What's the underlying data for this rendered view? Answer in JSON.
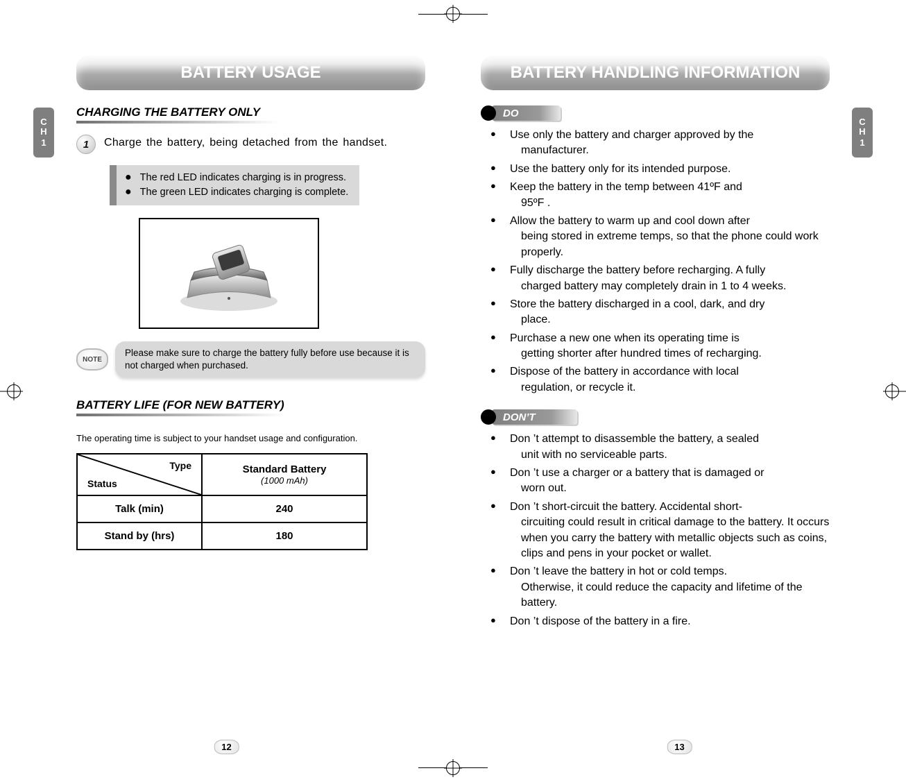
{
  "chapter_tab": {
    "line1": "C",
    "line2": "H",
    "line3": "1"
  },
  "left": {
    "header": "BATTERY USAGE",
    "section1": "CHARGING THE BATTERY ONLY",
    "step1_num": "1",
    "step1_text": "Charge the battery, being detached from the handset.",
    "info_bullets": [
      "The red LED indicates charging is in progress.",
      "The green LED indicates charging is complete."
    ],
    "note_badge": "NOTE",
    "note_text": "Please make sure to charge the battery fully before use because it is not charged when purchased.",
    "section2": "BATTERY LIFE (FOR NEW BATTERY)",
    "caption": "The operating time is subject to your handset usage and configuration.",
    "table": {
      "type_label": "Type",
      "status_label": "Status",
      "col_header": "Standard Battery",
      "col_sub": "(1000 mAh)",
      "rows": [
        {
          "label": "Talk (min)",
          "value": "240"
        },
        {
          "label": "Stand by (hrs)",
          "value": "180"
        }
      ]
    },
    "page_num": "12"
  },
  "right": {
    "header": "BATTERY HANDLING INFORMATION",
    "do_label": "DO",
    "do_items": [
      {
        "first": "Use only the battery and charger approved by the",
        "cont": "manufacturer."
      },
      {
        "first": "Use the battery only for its intended purpose."
      },
      {
        "first": "Keep the battery in the temp between 41ºF and",
        "cont": "95ºF ."
      },
      {
        "first": "Allow the battery to warm up and cool down after",
        "cont": "being stored in extreme temps, so that the phone could work properly."
      },
      {
        "first": "Fully discharge the battery before recharging. A fully",
        "cont": "charged battery may completely drain in 1 to 4 weeks."
      },
      {
        "first": "Store the battery discharged in a cool, dark, and dry",
        "cont": "place."
      },
      {
        "first": "Purchase a new one when its operating time is",
        "cont": "getting shorter after hundred times of recharging."
      },
      {
        "first": "Dispose of the battery in accordance with local",
        "cont": "regulation, or recycle it."
      }
    ],
    "dont_label": "DON’T",
    "dont_items": [
      {
        "first": "Don ’t attempt to disassemble the battery, a sealed",
        "cont": "unit with no serviceable parts."
      },
      {
        "first": "Don ’t use a charger or a battery that is damaged or",
        "cont": "worn out."
      },
      {
        "first": "Don ’t short-circuit the battery. Accidental short-",
        "cont": "circuiting could result in critical damage to the battery. It occurs when you carry the battery with metallic objects such as coins, clips and pens in your pocket or wallet."
      },
      {
        "first": "Don ’t leave the battery in hot or cold temps.",
        "cont": "Otherwise, it could reduce the capacity and lifetime of the battery."
      },
      {
        "first": "Don ’t dispose of the battery in a fire."
      }
    ],
    "page_num": "13"
  },
  "colors": {
    "header_text": "#ffffff",
    "pill_grad_top": "#f6f6f6",
    "pill_grad_bottom": "#8f8f8f",
    "side_tab_bg": "#7f7f7f",
    "info_bg": "#d9d9d9",
    "info_border": "#8a8a8a",
    "table_border": "#000000"
  }
}
